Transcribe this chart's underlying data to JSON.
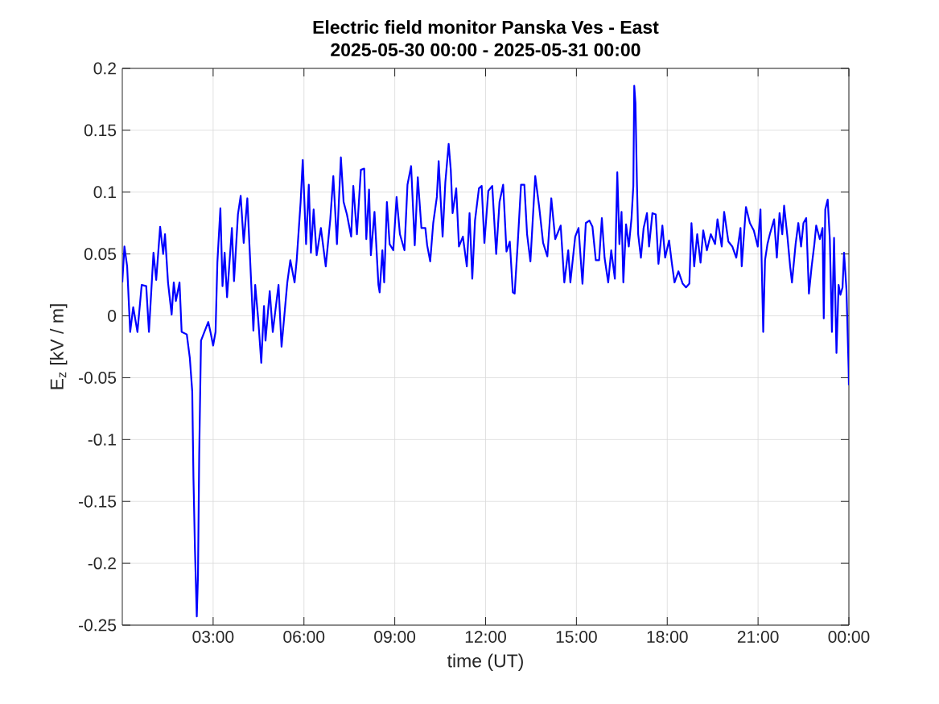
{
  "chart_data": {
    "type": "line",
    "title": "Electric field monitor Panska Ves - East",
    "subtitle": "2025-05-30 00:00 - 2025-05-31 00:00",
    "xlabel": "time (UT)",
    "ylabel": "E$_{z}$ [kV / m]",
    "xlim": [
      0,
      24
    ],
    "xticks": [
      {
        "value": 3,
        "label": "03:00"
      },
      {
        "value": 6,
        "label": "06:00"
      },
      {
        "value": 9,
        "label": "09:00"
      },
      {
        "value": 12,
        "label": "12:00"
      },
      {
        "value": 15,
        "label": "15:00"
      },
      {
        "value": 18,
        "label": "18:00"
      },
      {
        "value": 21,
        "label": "21:00"
      },
      {
        "value": 24,
        "label": "00:00"
      }
    ],
    "ylim": [
      -0.25,
      0.2
    ],
    "yticks": [
      -0.25,
      -0.2,
      -0.15,
      -0.1,
      -0.05,
      0,
      0.05,
      0.1,
      0.15,
      0.2
    ],
    "grid": true,
    "series": [
      {
        "color": "#0000ff",
        "x": [
          0,
          0.07,
          0.16,
          0.26,
          0.36,
          0.5,
          0.64,
          0.79,
          0.88,
          1.03,
          1.12,
          1.25,
          1.35,
          1.41,
          1.51,
          1.63,
          1.7,
          1.77,
          1.89,
          1.96,
          2.13,
          2.23,
          2.31,
          2.35,
          2.4,
          2.46,
          2.5,
          2.54,
          2.6,
          2.71,
          2.84,
          2.92,
          3.0,
          3.08,
          3.14,
          3.24,
          3.31,
          3.38,
          3.46,
          3.62,
          3.69,
          3.82,
          3.91,
          4.01,
          4.13,
          4.2,
          4.33,
          4.39,
          4.49,
          4.59,
          4.68,
          4.73,
          4.87,
          4.97,
          5.16,
          5.26,
          5.45,
          5.55,
          5.69,
          5.76,
          5.89,
          5.96,
          6.07,
          6.16,
          6.23,
          6.32,
          6.42,
          6.56,
          6.72,
          6.87,
          6.97,
          7.09,
          7.22,
          7.31,
          7.42,
          7.56,
          7.63,
          7.75,
          7.88,
          7.99,
          8.06,
          8.15,
          8.21,
          8.33,
          8.46,
          8.5,
          8.59,
          8.65,
          8.74,
          8.83,
          8.95,
          9.06,
          9.17,
          9.32,
          9.42,
          9.54,
          9.66,
          9.76,
          9.88,
          10.01,
          10.07,
          10.17,
          10.27,
          10.39,
          10.45,
          10.58,
          10.67,
          10.78,
          10.85,
          10.91,
          11.03,
          11.12,
          11.25,
          11.38,
          11.47,
          11.56,
          11.65,
          11.78,
          11.87,
          11.96,
          12.09,
          12.22,
          12.35,
          12.46,
          12.58,
          12.69,
          12.8,
          12.9,
          12.96,
          13.06,
          13.17,
          13.28,
          13.37,
          13.48,
          13.64,
          13.77,
          13.9,
          14.04,
          14.17,
          14.3,
          14.48,
          14.6,
          14.73,
          14.8,
          14.96,
          15.07,
          15.2,
          15.31,
          15.43,
          15.53,
          15.64,
          15.75,
          15.84,
          15.93,
          16.05,
          16.15,
          16.27,
          16.35,
          16.42,
          16.49,
          16.55,
          16.64,
          16.73,
          16.82,
          16.88,
          16.91,
          16.95,
          17.0,
          17.04,
          17.13,
          17.22,
          17.33,
          17.4,
          17.51,
          17.62,
          17.71,
          17.84,
          17.93,
          18.06,
          18.15,
          18.24,
          18.37,
          18.51,
          18.62,
          18.73,
          18.8,
          18.89,
          18.99,
          19.1,
          19.19,
          19.31,
          19.44,
          19.58,
          19.66,
          19.8,
          19.88,
          20.02,
          20.15,
          20.28,
          20.42,
          20.46,
          20.6,
          20.73,
          20.86,
          20.99,
          21.08,
          21.15,
          21.17,
          21.23,
          21.31,
          21.39,
          21.53,
          21.62,
          21.71,
          21.8,
          21.86,
          21.97,
          22.06,
          22.12,
          22.24,
          22.33,
          22.42,
          22.5,
          22.59,
          22.68,
          22.77,
          22.86,
          22.92,
          23.04,
          23.13,
          23.17,
          23.22,
          23.3,
          23.37,
          23.44,
          23.51,
          23.59,
          23.66,
          23.72,
          23.79,
          23.84,
          23.92,
          23.99,
          24.0
        ],
        "values": [
          0.027,
          0.056,
          0.04,
          -0.013,
          0.007,
          -0.013,
          0.025,
          0.024,
          -0.013,
          0.051,
          0.029,
          0.072,
          0.05,
          0.066,
          0.027,
          0.001,
          0.027,
          0.012,
          0.027,
          -0.013,
          -0.015,
          -0.034,
          -0.061,
          -0.131,
          -0.189,
          -0.243,
          -0.21,
          -0.112,
          -0.02,
          -0.013,
          -0.005,
          -0.014,
          -0.024,
          -0.013,
          0.043,
          0.087,
          0.024,
          0.051,
          0.015,
          0.071,
          0.028,
          0.082,
          0.097,
          0.059,
          0.095,
          0.057,
          -0.012,
          0.025,
          -0.003,
          -0.038,
          0.008,
          -0.02,
          0.02,
          -0.013,
          0.025,
          -0.025,
          0.027,
          0.045,
          0.027,
          0.045,
          0.092,
          0.126,
          0.058,
          0.106,
          0.051,
          0.086,
          0.049,
          0.071,
          0.04,
          0.078,
          0.113,
          0.058,
          0.128,
          0.092,
          0.082,
          0.064,
          0.105,
          0.066,
          0.118,
          0.119,
          0.062,
          0.102,
          0.049,
          0.084,
          0.025,
          0.019,
          0.053,
          0.027,
          0.092,
          0.058,
          0.053,
          0.096,
          0.066,
          0.053,
          0.106,
          0.121,
          0.057,
          0.112,
          0.071,
          0.071,
          0.057,
          0.044,
          0.075,
          0.096,
          0.125,
          0.064,
          0.108,
          0.139,
          0.118,
          0.083,
          0.103,
          0.056,
          0.064,
          0.04,
          0.083,
          0.03,
          0.077,
          0.103,
          0.105,
          0.059,
          0.101,
          0.105,
          0.05,
          0.092,
          0.106,
          0.052,
          0.06,
          0.019,
          0.018,
          0.058,
          0.106,
          0.106,
          0.066,
          0.044,
          0.113,
          0.088,
          0.059,
          0.048,
          0.095,
          0.062,
          0.073,
          0.027,
          0.053,
          0.027,
          0.064,
          0.071,
          0.026,
          0.075,
          0.077,
          0.072,
          0.045,
          0.045,
          0.079,
          0.047,
          0.027,
          0.053,
          0.03,
          0.116,
          0.058,
          0.084,
          0.027,
          0.074,
          0.056,
          0.079,
          0.105,
          0.186,
          0.172,
          0.106,
          0.066,
          0.047,
          0.071,
          0.083,
          0.056,
          0.083,
          0.082,
          0.042,
          0.073,
          0.047,
          0.061,
          0.043,
          0.027,
          0.036,
          0.026,
          0.023,
          0.026,
          0.075,
          0.04,
          0.066,
          0.043,
          0.069,
          0.053,
          0.066,
          0.058,
          0.078,
          0.056,
          0.084,
          0.06,
          0.056,
          0.047,
          0.071,
          0.04,
          0.088,
          0.075,
          0.069,
          0.056,
          0.086,
          0.01,
          -0.013,
          0.045,
          0.058,
          0.066,
          0.078,
          0.047,
          0.083,
          0.066,
          0.089,
          0.064,
          0.04,
          0.027,
          0.058,
          0.075,
          0.056,
          0.075,
          0.079,
          0.018,
          0.04,
          0.058,
          0.073,
          0.062,
          0.071,
          -0.002,
          0.086,
          0.094,
          0.062,
          -0.013,
          0.063,
          -0.03,
          0.025,
          0.017,
          0.023,
          0.051,
          0.021,
          -0.042,
          -0.056
        ]
      }
    ]
  }
}
